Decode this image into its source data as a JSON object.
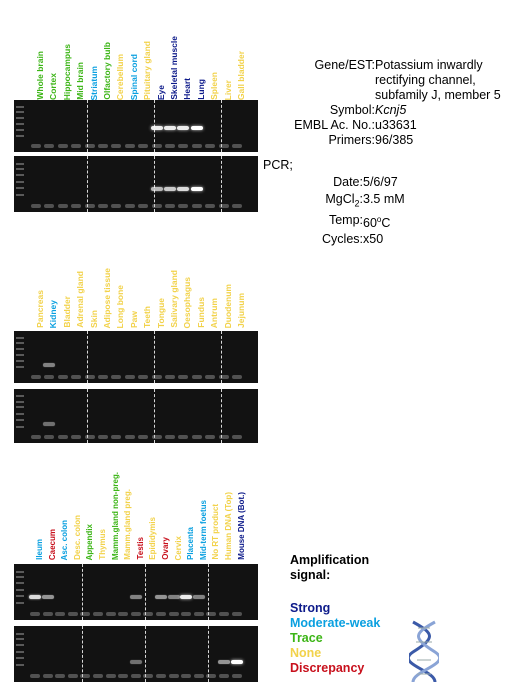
{
  "colors": {
    "strong": "#0d1a8a",
    "moderate": "#0aa0e0",
    "trace": "#3cb516",
    "none": "#f2d24a",
    "discrepancy": "#c8101c"
  },
  "panel1": {
    "labels": [
      {
        "text": "Whole brain",
        "level": "trace"
      },
      {
        "text": "Cortex",
        "level": "trace"
      },
      {
        "text": "Hippocampus",
        "level": "trace"
      },
      {
        "text": "Mid brain",
        "level": "trace"
      },
      {
        "text": "Striatum",
        "level": "moderate"
      },
      {
        "text": "Olfactory bulb",
        "level": "trace"
      },
      {
        "text": "Cerebellum",
        "level": "none"
      },
      {
        "text": "Spinal cord",
        "level": "moderate"
      },
      {
        "text": "Pituitary gland",
        "level": "none"
      },
      {
        "text": "Eye",
        "level": "strong"
      },
      {
        "text": "Skeletal muscle",
        "level": "strong"
      },
      {
        "text": "Heart",
        "level": "strong"
      },
      {
        "text": "Lung",
        "level": "strong"
      },
      {
        "text": "Spleen",
        "level": "none"
      },
      {
        "text": "Liver",
        "level": "none"
      },
      {
        "text": "Gall bladder",
        "level": "none"
      }
    ]
  },
  "panel2": {
    "labels": [
      {
        "text": "Pancreas",
        "level": "none"
      },
      {
        "text": "Kidney",
        "level": "moderate"
      },
      {
        "text": "Bladder",
        "level": "none"
      },
      {
        "text": "Adrenal gland",
        "level": "none"
      },
      {
        "text": "Skin",
        "level": "none"
      },
      {
        "text": "Adipose tissue",
        "level": "none"
      },
      {
        "text": "Long bone",
        "level": "none"
      },
      {
        "text": "Paw",
        "level": "none"
      },
      {
        "text": "Teeth",
        "level": "none"
      },
      {
        "text": "Tongue",
        "level": "none"
      },
      {
        "text": "Salivary gland",
        "level": "none"
      },
      {
        "text": "Oesophagus",
        "level": "none"
      },
      {
        "text": "Fundus",
        "level": "none"
      },
      {
        "text": "Antrum",
        "level": "none"
      },
      {
        "text": "Duodenum",
        "level": "none"
      },
      {
        "text": "Jejunum",
        "level": "none"
      }
    ]
  },
  "panel3": {
    "labels": [
      {
        "text": "Ileum",
        "level": "moderate"
      },
      {
        "text": "Caecum",
        "level": "discrepancy"
      },
      {
        "text": "Asc. colon",
        "level": "moderate"
      },
      {
        "text": "Desc. colon",
        "level": "none"
      },
      {
        "text": "Appendix",
        "level": "trace"
      },
      {
        "text": "Thymus",
        "level": "none"
      },
      {
        "text": "Mamm.gland non-preg.",
        "level": "trace"
      },
      {
        "text": "Mamm.gland preg.",
        "level": "none"
      },
      {
        "text": "Testis",
        "level": "discrepancy"
      },
      {
        "text": "Epididymis",
        "level": "none"
      },
      {
        "text": "Ovary",
        "level": "discrepancy"
      },
      {
        "text": "Cervix",
        "level": "none"
      },
      {
        "text": "Placenta",
        "level": "moderate"
      },
      {
        "text": "Mid-term foetus",
        "level": "moderate"
      },
      {
        "text": "No RT product",
        "level": "none"
      },
      {
        "text": "Human DNA (Top)",
        "level": "none"
      },
      {
        "text": "Mouse DNA (Bot.)",
        "level": "strong"
      }
    ]
  },
  "info": {
    "gene_key": "Gene/EST:",
    "gene_line1": "Potassium inwardly",
    "gene_line2": "rectifying channel,",
    "gene_line3": "subfamily J, member 5",
    "symbol_key": "Symbol:",
    "symbol_val": "Kcnj5",
    "embl_key": "EMBL Ac. No.:",
    "embl_val": "u33631",
    "primers_key": "Primers:",
    "primers_val": "96/385"
  },
  "pcr": {
    "title": "PCR;",
    "date_key": "Date:",
    "date_val": "5/6/97",
    "mgcl_key_pre": "MgCl",
    "mgcl_key_sub": "2",
    "mgcl_key_post": ":",
    "mgcl_val": "3.5 mM",
    "temp_key": "Temp:",
    "temp_val_pre": "60",
    "temp_val_sup": "o",
    "temp_val_post": "C",
    "cycles_key": "Cycles:",
    "cycles_val": "x50"
  },
  "legend": {
    "title_line1": "Amplification",
    "title_line2": "signal:",
    "strong": "Strong",
    "moderate": "Moderate-weak",
    "trace": "Trace",
    "none": "None",
    "discrepancy": "Discrepancy"
  },
  "gels": {
    "p1_top_bands": [
      0,
      0,
      0,
      0,
      0,
      0,
      0,
      0,
      0,
      0.9,
      0.9,
      0.9,
      1.0,
      0,
      0,
      0
    ],
    "p1_bot_bands": [
      0,
      0,
      0,
      0,
      0,
      0,
      0,
      0,
      0,
      0.6,
      0.7,
      0.8,
      1.0,
      0,
      0,
      0
    ],
    "p2_top_bands": [
      0,
      0.3,
      0,
      0,
      0,
      0,
      0,
      0,
      0,
      0,
      0,
      0,
      0,
      0,
      0,
      0
    ],
    "p2_bot_bands": [
      0,
      0.2,
      0,
      0,
      0,
      0,
      0,
      0,
      0,
      0,
      0,
      0,
      0,
      0,
      0,
      0
    ],
    "p3_top_bands": [
      0.8,
      0.4,
      0,
      0,
      0,
      0,
      0,
      0,
      0.3,
      0,
      0.4,
      0.3,
      0.9,
      0.3,
      0,
      0,
      0
    ],
    "p3_bot_bands": [
      0,
      0,
      0,
      0,
      0,
      0,
      0,
      0,
      0.2,
      0,
      0,
      0,
      0,
      0,
      0,
      0.4,
      1.0
    ]
  }
}
